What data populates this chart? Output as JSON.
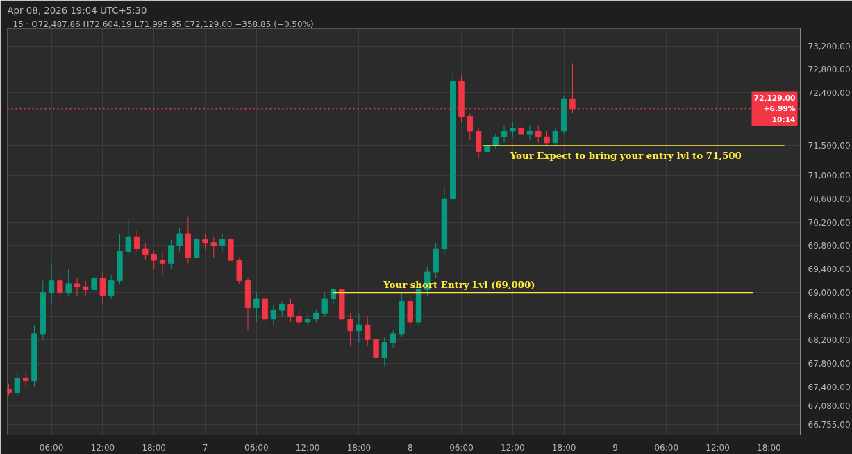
{
  "chart_data": {
    "type": "candlestick",
    "title": "Apr 08, 2026 19:04 UTC+5:30",
    "subtitle": "15 · O72,487.86 H72,604.19 L71,995.95 C72,129.00 −358.85 (−0.50%)",
    "x": [
      "2026-04-06T01:00",
      "2026-04-06T02:00",
      "2026-04-06T03:00",
      "2026-04-06T04:00",
      "2026-04-06T05:00",
      "2026-04-06T06:00",
      "2026-04-06T07:00",
      "2026-04-06T08:00",
      "2026-04-06T09:00",
      "2026-04-06T10:00",
      "2026-04-06T11:00",
      "2026-04-06T12:00",
      "2026-04-06T13:00",
      "2026-04-06T14:00",
      "2026-04-06T15:00",
      "2026-04-06T16:00",
      "2026-04-06T17:00",
      "2026-04-06T18:00",
      "2026-04-06T19:00",
      "2026-04-06T20:00",
      "2026-04-06T21:00",
      "2026-04-06T22:00",
      "2026-04-06T23:00",
      "2026-04-07T00:00",
      "2026-04-07T01:00",
      "2026-04-07T02:00",
      "2026-04-07T03:00",
      "2026-04-07T04:00",
      "2026-04-07T05:00",
      "2026-04-07T06:00",
      "2026-04-07T07:00",
      "2026-04-07T08:00",
      "2026-04-07T09:00",
      "2026-04-07T10:00",
      "2026-04-07T11:00",
      "2026-04-07T12:00",
      "2026-04-07T13:00",
      "2026-04-07T14:00",
      "2026-04-07T15:00",
      "2026-04-07T16:00",
      "2026-04-07T17:00",
      "2026-04-07T18:00",
      "2026-04-07T19:00",
      "2026-04-07T20:00",
      "2026-04-07T21:00",
      "2026-04-07T22:00",
      "2026-04-07T23:00",
      "2026-04-08T00:00",
      "2026-04-08T01:00",
      "2026-04-08T02:00",
      "2026-04-08T03:00",
      "2026-04-08T04:00",
      "2026-04-08T05:00",
      "2026-04-08T06:00",
      "2026-04-08T07:00",
      "2026-04-08T08:00",
      "2026-04-08T09:00",
      "2026-04-08T10:00",
      "2026-04-08T11:00",
      "2026-04-08T12:00",
      "2026-04-08T13:00",
      "2026-04-08T14:00",
      "2026-04-08T15:00",
      "2026-04-08T16:00",
      "2026-04-08T17:00",
      "2026-04-08T18:00",
      "2026-04-08T19:00"
    ],
    "ohlc": [
      [
        67350,
        67450,
        67250,
        67300
      ],
      [
        67300,
        67650,
        67250,
        67550
      ],
      [
        67550,
        67650,
        67400,
        67500
      ],
      [
        67500,
        68450,
        67400,
        68300
      ],
      [
        68300,
        69200,
        68200,
        69000
      ],
      [
        69000,
        69500,
        68800,
        69200
      ],
      [
        69200,
        69350,
        68850,
        69000
      ],
      [
        69000,
        69400,
        68950,
        69150
      ],
      [
        69150,
        69250,
        68950,
        69100
      ],
      [
        69100,
        69200,
        68950,
        69050
      ],
      [
        69050,
        69300,
        68950,
        69250
      ],
      [
        69250,
        69350,
        68800,
        68950
      ],
      [
        68950,
        69300,
        68900,
        69200
      ],
      [
        69200,
        70000,
        69150,
        69700
      ],
      [
        69700,
        70250,
        69650,
        69950
      ],
      [
        69950,
        70050,
        69700,
        69750
      ],
      [
        69750,
        69850,
        69550,
        69650
      ],
      [
        69650,
        69700,
        69400,
        69550
      ],
      [
        69550,
        69700,
        69300,
        69500
      ],
      [
        69500,
        69900,
        69400,
        69800
      ],
      [
        69800,
        70100,
        69700,
        70000
      ],
      [
        70000,
        70300,
        69500,
        69600
      ],
      [
        69600,
        69950,
        69550,
        69900
      ],
      [
        69900,
        70000,
        69750,
        69850
      ],
      [
        69850,
        69950,
        69600,
        69800
      ],
      [
        69800,
        70000,
        69700,
        69900
      ],
      [
        69900,
        69950,
        69500,
        69550
      ],
      [
        69550,
        69600,
        69150,
        69200
      ],
      [
        69200,
        69250,
        68350,
        68750
      ],
      [
        68750,
        69000,
        68500,
        68900
      ],
      [
        68900,
        68950,
        68400,
        68550
      ],
      [
        68550,
        68800,
        68450,
        68700
      ],
      [
        68700,
        68850,
        68600,
        68800
      ],
      [
        68800,
        68900,
        68500,
        68600
      ],
      [
        68600,
        68700,
        68450,
        68500
      ],
      [
        68500,
        68650,
        68450,
        68550
      ],
      [
        68550,
        68700,
        68500,
        68650
      ],
      [
        68650,
        69000,
        68600,
        68900
      ],
      [
        68900,
        69100,
        68800,
        69050
      ],
      [
        69050,
        69100,
        68500,
        68550
      ],
      [
        68550,
        68650,
        68100,
        68350
      ],
      [
        68350,
        68650,
        68150,
        68450
      ],
      [
        68450,
        68600,
        68100,
        68200
      ],
      [
        68200,
        68400,
        67750,
        67900
      ],
      [
        67900,
        68250,
        67750,
        68150
      ],
      [
        68150,
        68350,
        68050,
        68300
      ],
      [
        68300,
        69000,
        68250,
        68850
      ],
      [
        68850,
        68950,
        68400,
        68500
      ],
      [
        68500,
        69100,
        68450,
        69050
      ],
      [
        69050,
        69450,
        68950,
        69350
      ],
      [
        69350,
        69850,
        69250,
        69750
      ],
      [
        69750,
        70800,
        69650,
        70600
      ],
      [
        70600,
        72750,
        70550,
        72600
      ],
      [
        72600,
        72700,
        71900,
        72000
      ],
      [
        72000,
        72050,
        71600,
        71750
      ],
      [
        71750,
        71800,
        71300,
        71400
      ],
      [
        71400,
        71600,
        71300,
        71500
      ],
      [
        71500,
        71700,
        71450,
        71650
      ],
      [
        71650,
        71850,
        71550,
        71750
      ],
      [
        71750,
        71900,
        71650,
        71800
      ],
      [
        71800,
        71900,
        71650,
        71700
      ],
      [
        71700,
        71850,
        71600,
        71750
      ],
      [
        71750,
        71850,
        71550,
        71650
      ],
      [
        71650,
        71750,
        71500,
        71550
      ],
      [
        71550,
        71800,
        71500,
        71750
      ],
      [
        71750,
        72350,
        71700,
        72300
      ],
      [
        72300,
        72900,
        72050,
        72129
      ]
    ],
    "xlim": [
      "2026-04-06T00:50",
      "2026-04-09T21:40"
    ],
    "xticks": [
      {
        "value": "2026-04-06T06:00",
        "label": "06:00"
      },
      {
        "value": "2026-04-06T12:00",
        "label": "12:00"
      },
      {
        "value": "2026-04-06T18:00",
        "label": "18:00"
      },
      {
        "value": "2026-04-07T00:00",
        "label": "7"
      },
      {
        "value": "2026-04-07T06:00",
        "label": "06:00"
      },
      {
        "value": "2026-04-07T12:00",
        "label": "12:00"
      },
      {
        "value": "2026-04-07T18:00",
        "label": "18:00"
      },
      {
        "value": "2026-04-08T00:00",
        "label": "8"
      },
      {
        "value": "2026-04-08T06:00",
        "label": "06:00"
      },
      {
        "value": "2026-04-08T12:00",
        "label": "12:00"
      },
      {
        "value": "2026-04-08T18:00",
        "label": "18:00"
      },
      {
        "value": "2026-04-09T00:00",
        "label": "9"
      },
      {
        "value": "2026-04-09T06:00",
        "label": "06:00"
      },
      {
        "value": "2026-04-09T12:00",
        "label": "12:00"
      },
      {
        "value": "2026-04-09T18:00",
        "label": "18:00"
      }
    ],
    "ylim": [
      66580,
      73490
    ],
    "yticks": [
      {
        "value": 66755,
        "label": "66,755.00"
      },
      {
        "value": 67080,
        "label": "67,080.00"
      },
      {
        "value": 67400,
        "label": "67,400.00"
      },
      {
        "value": 67800,
        "label": "67,800.00"
      },
      {
        "value": 68200,
        "label": "68,200.00"
      },
      {
        "value": 68600,
        "label": "68,600.00"
      },
      {
        "value": 69000,
        "label": "69,000.00"
      },
      {
        "value": 69400,
        "label": "69,400.00"
      },
      {
        "value": 69800,
        "label": "69,800.00"
      },
      {
        "value": 70200,
        "label": "70,200.00"
      },
      {
        "value": 70600,
        "label": "70,600.00"
      },
      {
        "value": 71000,
        "label": "71,000.00"
      },
      {
        "value": 71500,
        "label": "71,500.00"
      },
      {
        "value": 72400,
        "label": "72,400.00"
      },
      {
        "value": 72800,
        "label": "72,800.00"
      },
      {
        "value": 73200,
        "label": "73,200.00"
      }
    ],
    "ref_lines": [
      {
        "axis": "y",
        "value": 69000,
        "label": "Your short Entry Lvl (69,000)",
        "color": "#ffeb3b",
        "line_style": "solid"
      },
      {
        "axis": "y",
        "value": 71500,
        "label": "Your Expect to bring your entry lvl to 71,500",
        "color": "#ffeb3b",
        "line_style": "solid"
      },
      {
        "axis": "y",
        "value": 72129,
        "label": "72,129.00\n+6.99%\n10:14",
        "color": "#f23645",
        "line_style": "dotted"
      }
    ],
    "grid": true
  }
}
